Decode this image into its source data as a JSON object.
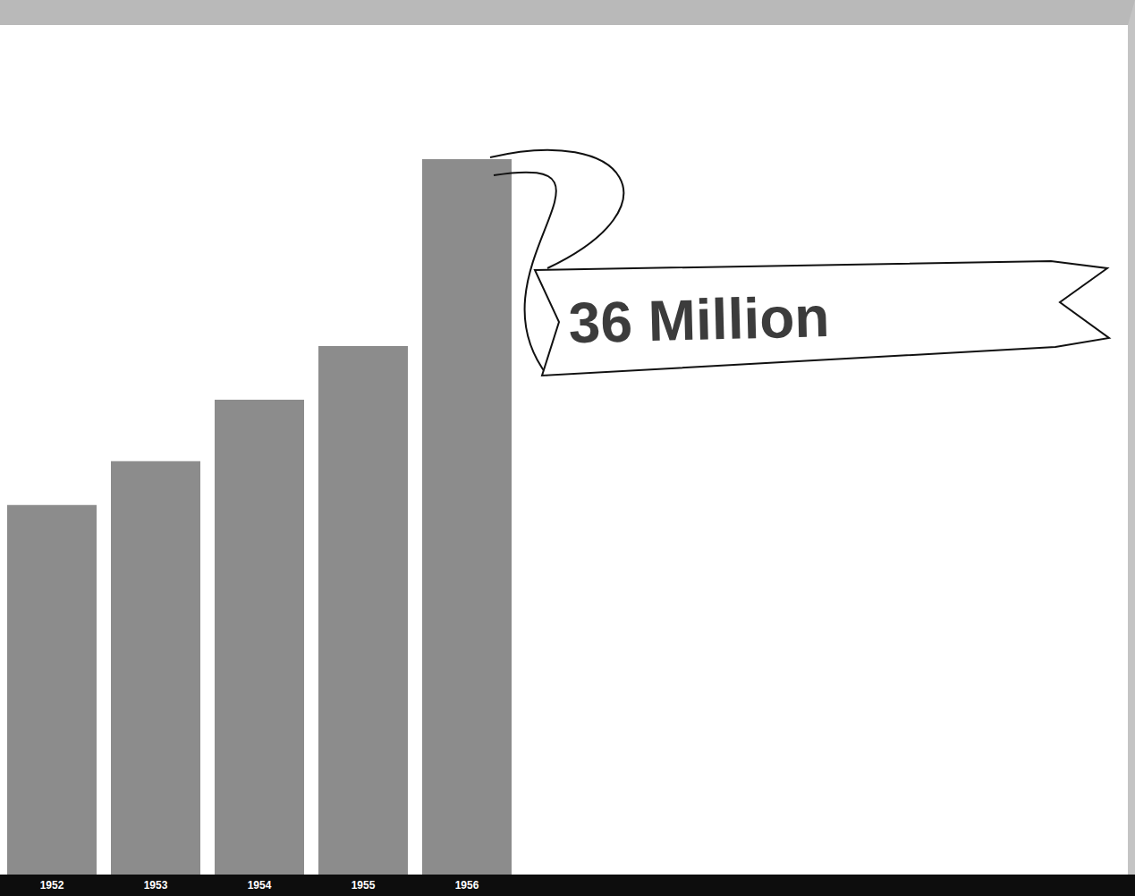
{
  "chart_data": {
    "type": "bar",
    "categories": [
      "1952",
      "1953",
      "1954",
      "1955",
      "1956"
    ],
    "values": [
      18.6,
      20.8,
      23.9,
      26.6,
      36
    ],
    "color": "#8c8c8c",
    "ylim": [
      0,
      36
    ],
    "tick_labels": "x",
    "grid": false,
    "annotation": "36 Million"
  }
}
